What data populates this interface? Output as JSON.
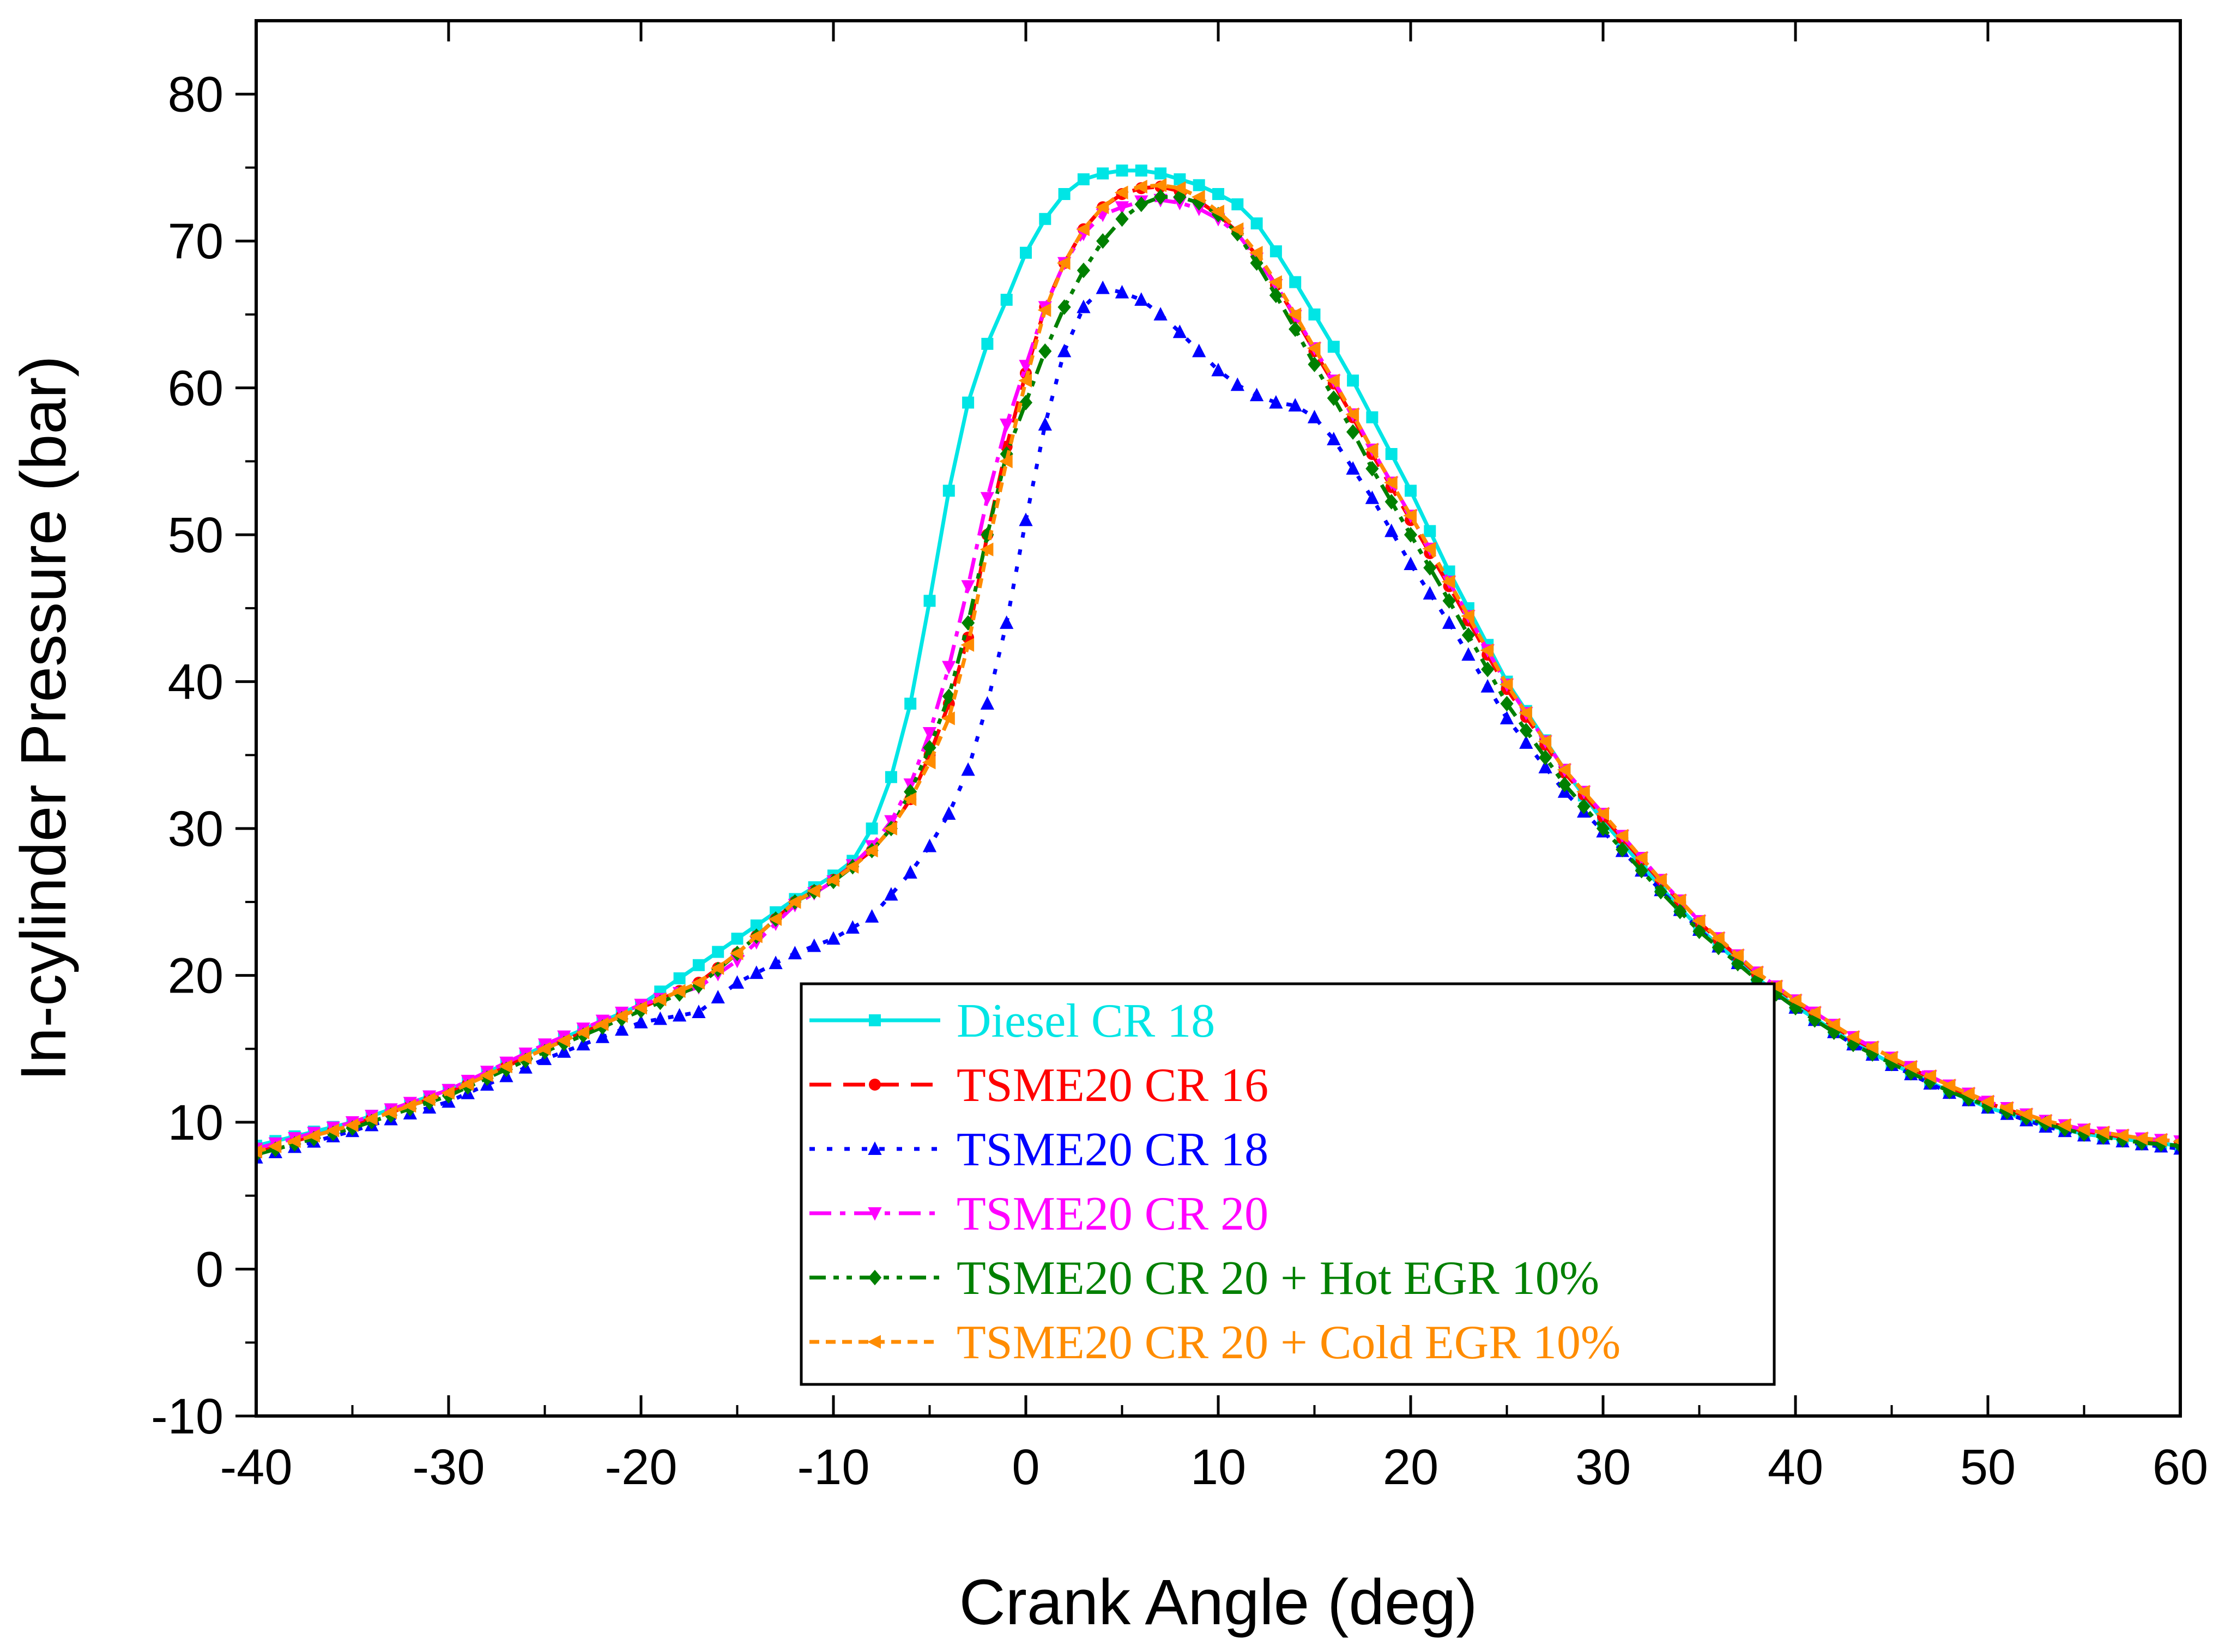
{
  "chart_data": {
    "type": "line",
    "xlabel": "Crank Angle (deg)",
    "ylabel": "In-cylinder Pressure (bar)",
    "xlim": [
      -40,
      60
    ],
    "ylim": [
      -10,
      85
    ],
    "xticks": [
      -40,
      -30,
      -20,
      -10,
      0,
      10,
      20,
      30,
      40,
      50,
      60
    ],
    "yticks": [
      -10,
      0,
      10,
      20,
      30,
      40,
      50,
      60,
      70,
      80
    ],
    "grid": false,
    "legend_position": "bottom-center",
    "series": [
      {
        "name": "Diesel CR 18",
        "color": "#00E5E5",
        "dash": "solid",
        "marker": "square",
        "x": [
          -40,
          -35,
          -30,
          -25,
          -20,
          -15,
          -12,
          -10,
          -9,
          -8,
          -7,
          -6,
          -5,
          -4,
          -3,
          -2,
          -1,
          0,
          1,
          2,
          3,
          4,
          5,
          6,
          7,
          8,
          9,
          10,
          11,
          12,
          13,
          14,
          15,
          16,
          17,
          18,
          20,
          22,
          25,
          28,
          30,
          33,
          35,
          38,
          40,
          43,
          45,
          48,
          50,
          53,
          55,
          58,
          60
        ],
        "y": [
          8.4,
          10.0,
          12.2,
          15.2,
          18.0,
          22.5,
          25.2,
          26.8,
          27.8,
          30.0,
          33.5,
          38.5,
          45.5,
          53.0,
          59.0,
          63.0,
          66.0,
          69.2,
          71.5,
          73.2,
          74.2,
          74.6,
          74.8,
          74.8,
          74.6,
          74.2,
          73.8,
          73.2,
          72.5,
          71.2,
          69.3,
          67.2,
          65.0,
          62.8,
          60.5,
          58.0,
          53.0,
          47.5,
          40.0,
          34.0,
          30.5,
          26.0,
          23.2,
          19.8,
          17.9,
          15.4,
          14.0,
          12.1,
          11.0,
          9.8,
          9.2,
          8.7,
          8.4
        ]
      },
      {
        "name": "TSME20 CR 16",
        "color": "#FF0000",
        "dash": "dashed",
        "marker": "circle",
        "x": [
          -40,
          -35,
          -30,
          -25,
          -20,
          -17,
          -15,
          -12,
          -10,
          -9,
          -8,
          -7,
          -6,
          -5,
          -4,
          -3,
          -2,
          -1,
          0,
          1,
          2,
          3,
          4,
          5,
          6,
          7,
          8,
          9,
          10,
          11,
          12,
          13,
          14,
          15,
          16,
          17,
          18,
          20,
          22,
          25,
          28,
          30,
          33,
          35,
          38,
          40,
          43,
          45,
          48,
          50,
          53,
          55,
          58,
          60
        ],
        "y": [
          8.0,
          9.8,
          12.0,
          15.0,
          17.8,
          19.5,
          21.5,
          25.0,
          26.5,
          27.5,
          28.5,
          30.0,
          32.0,
          35.0,
          38.5,
          43.0,
          50.0,
          56.0,
          61.0,
          65.5,
          68.5,
          70.8,
          72.3,
          73.2,
          73.6,
          73.7,
          73.4,
          72.7,
          71.8,
          70.6,
          69.0,
          67.0,
          64.8,
          62.5,
          60.3,
          58.0,
          55.5,
          51.0,
          46.5,
          39.5,
          33.8,
          30.8,
          26.4,
          23.6,
          20.1,
          18.2,
          15.7,
          14.3,
          12.4,
          11.3,
          10.0,
          9.4,
          8.8,
          8.6
        ]
      },
      {
        "name": "TSME20 CR 18",
        "color": "#0000FF",
        "dash": "dotted",
        "marker": "triangle-up",
        "x": [
          -40,
          -35,
          -30,
          -25,
          -20,
          -17,
          -15,
          -12,
          -10,
          -8,
          -7,
          -6,
          -5,
          -4,
          -3,
          -2,
          -1,
          0,
          1,
          2,
          3,
          4,
          5,
          6,
          7,
          8,
          9,
          10,
          11,
          12,
          13,
          14,
          15,
          16,
          17,
          18,
          20,
          22,
          25,
          28,
          30,
          33,
          35,
          38,
          40,
          43,
          45,
          48,
          50,
          53,
          55,
          58,
          60
        ],
        "y": [
          7.6,
          9.4,
          11.4,
          14.3,
          16.8,
          17.5,
          19.5,
          21.5,
          22.5,
          24.0,
          25.5,
          27.0,
          28.8,
          31.0,
          34.0,
          38.5,
          44.0,
          51.0,
          57.5,
          62.5,
          65.5,
          66.8,
          66.5,
          66.0,
          65.0,
          63.8,
          62.5,
          61.2,
          60.2,
          59.5,
          59.0,
          58.8,
          58.0,
          56.5,
          54.5,
          52.5,
          48.0,
          44.0,
          37.5,
          32.5,
          29.8,
          25.8,
          23.1,
          19.7,
          17.8,
          15.3,
          13.9,
          12.0,
          11.0,
          9.7,
          9.1,
          8.5,
          8.2
        ]
      },
      {
        "name": "TSME20 CR 20",
        "color": "#FF00FF",
        "dash": "dash-dot",
        "marker": "triangle-down",
        "x": [
          -40,
          -35,
          -30,
          -25,
          -20,
          -17,
          -15,
          -12,
          -10,
          -9,
          -8,
          -7,
          -6,
          -5,
          -4,
          -3,
          -2,
          -1,
          0,
          1,
          2,
          3,
          4,
          5,
          6,
          7,
          8,
          9,
          10,
          11,
          12,
          13,
          14,
          15,
          16,
          17,
          18,
          20,
          22,
          25,
          28,
          30,
          33,
          35,
          38,
          40,
          43,
          45,
          48,
          50,
          53,
          55,
          58,
          60
        ],
        "y": [
          8.2,
          10.0,
          12.2,
          15.3,
          18.0,
          19.2,
          21.0,
          24.8,
          26.4,
          27.5,
          28.8,
          30.5,
          33.0,
          36.5,
          41.0,
          46.5,
          52.5,
          57.5,
          61.5,
          65.5,
          68.5,
          70.5,
          71.8,
          72.3,
          72.7,
          72.8,
          72.6,
          72.2,
          71.5,
          70.5,
          68.8,
          67.0,
          64.9,
          62.7,
          60.5,
          58.2,
          55.8,
          51.3,
          46.8,
          39.8,
          34.0,
          31.0,
          26.5,
          23.7,
          20.2,
          18.3,
          15.8,
          14.4,
          12.5,
          11.4,
          10.1,
          9.5,
          8.9,
          8.7
        ]
      },
      {
        "name": "TSME20 CR 20 + Hot EGR 10%",
        "color": "#008000",
        "dash": "dash-dot-dot",
        "marker": "diamond",
        "x": [
          -40,
          -35,
          -30,
          -25,
          -20,
          -17,
          -15,
          -12,
          -10,
          -9,
          -8,
          -7,
          -6,
          -5,
          -4,
          -3,
          -2,
          -1,
          0,
          1,
          2,
          3,
          4,
          5,
          6,
          7,
          8,
          9,
          10,
          11,
          12,
          13,
          14,
          15,
          16,
          17,
          18,
          20,
          22,
          25,
          28,
          30,
          33,
          35,
          38,
          40,
          43,
          45,
          48,
          50,
          53,
          55,
          58,
          60
        ],
        "y": [
          7.8,
          9.6,
          11.8,
          14.8,
          17.6,
          19.3,
          21.5,
          25.0,
          26.4,
          27.4,
          28.5,
          30.0,
          32.5,
          35.5,
          39.0,
          44.0,
          50.0,
          55.5,
          59.0,
          62.5,
          65.5,
          68.0,
          70.0,
          71.5,
          72.5,
          73.0,
          73.0,
          72.6,
          71.8,
          70.5,
          68.5,
          66.3,
          64.0,
          61.6,
          59.3,
          57.0,
          54.5,
          50.0,
          45.5,
          38.5,
          33.0,
          30.0,
          25.7,
          23.0,
          19.7,
          17.8,
          15.3,
          14.0,
          12.1,
          11.1,
          9.9,
          9.2,
          8.6,
          8.4
        ]
      },
      {
        "name": "TSME20 CR 20 + Cold EGR 10%",
        "color": "#FF8C00",
        "dash": "short-dashed",
        "marker": "triangle-left",
        "x": [
          -40,
          -35,
          -30,
          -25,
          -20,
          -17,
          -15,
          -12,
          -10,
          -9,
          -8,
          -7,
          -6,
          -5,
          -4,
          -3,
          -2,
          -1,
          0,
          1,
          2,
          3,
          4,
          5,
          6,
          7,
          8,
          9,
          10,
          11,
          12,
          13,
          14,
          15,
          16,
          17,
          18,
          20,
          22,
          25,
          28,
          30,
          33,
          35,
          38,
          40,
          43,
          45,
          48,
          50,
          53,
          55,
          58,
          60
        ],
        "y": [
          8.0,
          9.8,
          12.0,
          15.0,
          17.8,
          19.5,
          21.5,
          25.0,
          26.5,
          27.4,
          28.5,
          30.0,
          32.0,
          34.5,
          37.5,
          42.5,
          49.0,
          55.0,
          60.5,
          65.3,
          68.5,
          70.8,
          72.3,
          73.3,
          73.7,
          73.8,
          73.6,
          73.0,
          72.0,
          70.8,
          69.2,
          67.2,
          65.0,
          62.7,
          60.5,
          58.2,
          55.8,
          51.3,
          46.8,
          39.8,
          34.0,
          31.0,
          26.5,
          23.7,
          20.2,
          18.3,
          15.8,
          14.4,
          12.5,
          11.4,
          10.1,
          9.5,
          8.9,
          8.7
        ]
      }
    ]
  }
}
